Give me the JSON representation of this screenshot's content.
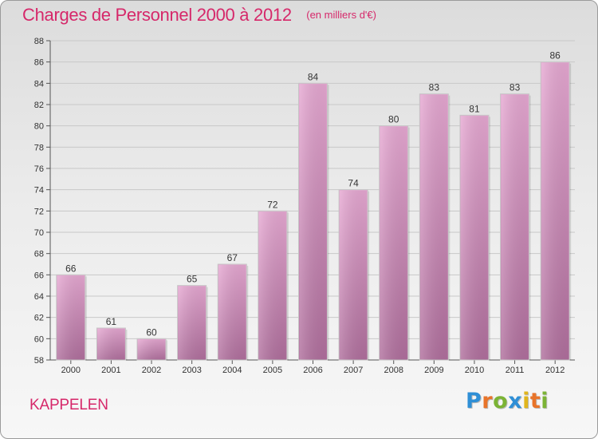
{
  "header": {
    "title": "Charges de Personnel 2000 à 2012",
    "subtitle": "(en milliers d'€)"
  },
  "location": "KAPPELEN",
  "brand": {
    "letters": [
      "P",
      "r",
      "o",
      "x",
      "i",
      "t",
      "i"
    ],
    "colors": [
      "#2f8fd6",
      "#e8742a",
      "#7bb335",
      "#2f8fd6",
      "#e0b51c",
      "#e8742a",
      "#7bb335"
    ]
  },
  "chart_data": {
    "type": "bar",
    "categories": [
      "2000",
      "2001",
      "2002",
      "2003",
      "2004",
      "2005",
      "2006",
      "2007",
      "2008",
      "2009",
      "2010",
      "2011",
      "2012"
    ],
    "values": [
      66,
      61,
      60,
      65,
      67,
      72,
      84,
      74,
      80,
      83,
      81,
      83,
      86
    ],
    "ylim": [
      58,
      88
    ],
    "yticks": [
      58,
      60,
      62,
      64,
      66,
      68,
      70,
      72,
      74,
      76,
      78,
      80,
      82,
      84,
      86,
      88
    ],
    "grid": true,
    "bar_color": "#d28cbd"
  }
}
